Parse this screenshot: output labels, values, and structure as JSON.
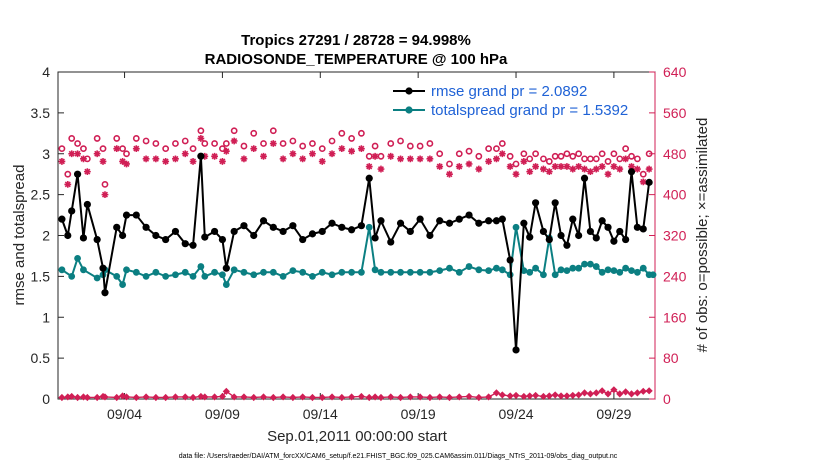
{
  "chart_data": {
    "type": "line",
    "title": "Tropics 27291 / 28728 = 94.998%",
    "subtitle": "RADIOSONDE_TEMPERATURE @ 100 hPa",
    "xlabel": "Sep.01,2011 00:00:00 start",
    "ylabel": "rmse and totalspread",
    "ylabel_right": "# of obs: o=possible; ×=assimilated",
    "footnote": "data file: /Users/raeder/DAI/ATM_forcXX/CAM6_setup/f.e21.FHIST_BGC.f09_025.CAM6assim.011/Diags_NTrS_2011-09/obs_diag_output.nc",
    "xlim": [
      0.6,
      31.1
    ],
    "ylim": [
      0,
      4
    ],
    "ylim_right": [
      0,
      640
    ],
    "xticks": [
      4,
      9,
      14,
      19,
      24,
      29
    ],
    "xtick_labels": [
      "09/04",
      "09/09",
      "09/14",
      "09/19",
      "09/24",
      "09/29"
    ],
    "yticks": [
      0,
      0.5,
      1,
      1.5,
      2,
      2.5,
      3,
      3.5,
      4
    ],
    "ytick_labels": [
      "0",
      "0.5",
      "1",
      "1.5",
      "2",
      "2.5",
      "3",
      "3.5",
      "4"
    ],
    "yticks_right": [
      0,
      80,
      160,
      240,
      320,
      400,
      480,
      560,
      640
    ],
    "ytick_labels_right": [
      "0",
      "80",
      "160",
      "240",
      "320",
      "400",
      "480",
      "560",
      "640"
    ],
    "colors": {
      "rmse": "#000000",
      "spread": "#0b7f82",
      "obs": "#d01f55",
      "legend_text": "#1f62d6",
      "axis": "#262626"
    },
    "legend": [
      "rmse grand pr = 2.0892",
      "totalspread grand pr = 1.5392"
    ],
    "series": [
      {
        "name": "rmse",
        "x": [
          0.8,
          1.1,
          1.3,
          1.6,
          1.9,
          2.1,
          2.6,
          2.9,
          3.0,
          3.6,
          3.9,
          4.1,
          4.6,
          5.1,
          5.6,
          6.1,
          6.6,
          7.1,
          7.5,
          7.9,
          8.1,
          8.6,
          9.0,
          9.2,
          9.6,
          10.1,
          10.6,
          11.1,
          11.6,
          12.1,
          12.6,
          13.1,
          13.6,
          14.1,
          14.6,
          15.1,
          15.6,
          16.1,
          16.5,
          16.8,
          17.1,
          17.6,
          18.1,
          18.6,
          19.1,
          19.6,
          20.1,
          20.6,
          21.1,
          21.6,
          22.1,
          22.6,
          23.0,
          23.3,
          23.7,
          24.0,
          24.4,
          24.7,
          25.0,
          25.4,
          25.7,
          26.0,
          26.3,
          26.6,
          26.9,
          27.2,
          27.5,
          27.8,
          28.1,
          28.4,
          28.7,
          29.0,
          29.3,
          29.6,
          29.9,
          30.2,
          30.5,
          30.8
        ],
        "values": [
          2.2,
          2.0,
          2.3,
          2.75,
          1.97,
          2.38,
          1.95,
          1.6,
          1.3,
          2.1,
          2.0,
          2.25,
          2.25,
          2.1,
          2.0,
          1.95,
          2.05,
          1.9,
          1.88,
          2.97,
          1.98,
          2.05,
          1.95,
          1.6,
          2.05,
          2.12,
          2.0,
          2.18,
          2.1,
          2.05,
          2.12,
          1.95,
          2.02,
          2.05,
          2.15,
          2.1,
          2.07,
          2.12,
          2.7,
          1.97,
          2.18,
          1.92,
          2.15,
          2.05,
          2.2,
          2.0,
          2.18,
          2.15,
          2.2,
          2.25,
          2.15,
          2.18,
          2.18,
          2.2,
          1.7,
          0.6,
          2.15,
          1.98,
          2.4,
          2.05,
          1.95,
          2.4,
          2.0,
          1.88,
          2.2,
          2.0,
          2.7,
          2.05,
          1.97,
          2.18,
          2.1,
          1.93,
          2.05,
          1.95,
          2.78,
          2.1,
          2.08,
          2.65
        ]
      },
      {
        "name": "totalspread",
        "x": [
          0.8,
          1.3,
          1.6,
          1.9,
          2.6,
          2.9,
          3.0,
          3.6,
          3.9,
          4.1,
          4.6,
          5.1,
          5.6,
          6.1,
          6.6,
          7.1,
          7.5,
          7.9,
          8.1,
          8.6,
          9.0,
          9.2,
          9.6,
          10.1,
          10.6,
          11.1,
          11.6,
          12.1,
          12.6,
          13.1,
          13.6,
          14.1,
          14.6,
          15.1,
          15.6,
          16.1,
          16.5,
          16.8,
          17.1,
          17.6,
          18.1,
          18.6,
          19.1,
          19.6,
          20.1,
          20.6,
          21.1,
          21.6,
          22.1,
          22.6,
          23.0,
          23.3,
          23.7,
          24.0,
          24.4,
          24.7,
          25.0,
          25.4,
          25.7,
          26.0,
          26.3,
          26.6,
          26.9,
          27.2,
          27.5,
          27.8,
          28.1,
          28.4,
          28.7,
          29.0,
          29.3,
          29.6,
          29.9,
          30.2,
          30.5,
          30.8,
          31.0
        ],
        "values": [
          1.58,
          1.5,
          1.72,
          1.58,
          1.48,
          1.52,
          1.58,
          1.5,
          1.4,
          1.58,
          1.55,
          1.5,
          1.55,
          1.5,
          1.52,
          1.55,
          1.5,
          1.62,
          1.5,
          1.55,
          1.52,
          1.4,
          1.58,
          1.55,
          1.52,
          1.55,
          1.55,
          1.5,
          1.57,
          1.55,
          1.5,
          1.55,
          1.52,
          1.55,
          1.55,
          1.55,
          2.1,
          1.58,
          1.55,
          1.55,
          1.55,
          1.55,
          1.55,
          1.55,
          1.57,
          1.6,
          1.55,
          1.62,
          1.58,
          1.57,
          1.6,
          1.58,
          1.52,
          2.1,
          1.57,
          1.55,
          1.6,
          1.52,
          1.97,
          1.52,
          1.58,
          1.57,
          1.6,
          1.6,
          1.65,
          1.65,
          1.62,
          1.55,
          1.58,
          1.57,
          1.55,
          1.6,
          1.57,
          1.55,
          1.6,
          1.52,
          1.52
        ]
      },
      {
        "name": "# obs possible",
        "axis": "right",
        "x": [
          0.8,
          1.1,
          1.3,
          1.6,
          1.9,
          2.1,
          2.6,
          2.9,
          3.0,
          3.6,
          3.9,
          4.1,
          4.6,
          5.1,
          5.6,
          6.1,
          6.6,
          7.1,
          7.5,
          7.9,
          8.1,
          8.6,
          9.0,
          9.2,
          9.6,
          10.1,
          10.6,
          11.1,
          11.6,
          12.1,
          12.6,
          13.1,
          13.6,
          14.1,
          14.6,
          15.1,
          15.6,
          16.1,
          16.5,
          16.8,
          17.1,
          17.6,
          18.1,
          18.6,
          19.1,
          19.6,
          20.1,
          20.6,
          21.1,
          21.6,
          22.1,
          22.6,
          23.0,
          23.3,
          23.7,
          24.0,
          24.4,
          24.7,
          25.0,
          25.4,
          25.7,
          26.0,
          26.3,
          26.6,
          26.9,
          27.2,
          27.5,
          27.8,
          28.1,
          28.4,
          28.7,
          29.0,
          29.3,
          29.6,
          29.9,
          30.2,
          30.5,
          30.8
        ],
        "values": [
          490,
          440,
          510,
          500,
          490,
          470,
          510,
          490,
          420,
          510,
          490,
          480,
          510,
          505,
          500,
          490,
          500,
          505,
          490,
          525,
          500,
          500,
          490,
          500,
          525,
          495,
          520,
          500,
          525,
          500,
          505,
          495,
          500,
          490,
          505,
          520,
          510,
          520,
          475,
          495,
          475,
          500,
          505,
          495,
          495,
          500,
          480,
          460,
          480,
          485,
          475,
          490,
          490,
          500,
          475,
          460,
          480,
          470,
          480,
          470,
          465,
          475,
          475,
          480,
          475,
          480,
          470,
          470,
          470,
          480,
          465,
          480,
          470,
          490,
          475,
          470,
          440,
          480
        ]
      },
      {
        "name": "# obs assimilated",
        "axis": "right",
        "x": [
          0.8,
          1.1,
          1.3,
          1.6,
          1.9,
          2.1,
          2.6,
          2.9,
          3.0,
          3.6,
          3.9,
          4.1,
          4.6,
          5.1,
          5.6,
          6.1,
          6.6,
          7.1,
          7.5,
          7.9,
          8.1,
          8.6,
          9.0,
          9.2,
          9.6,
          10.1,
          10.6,
          11.1,
          11.6,
          12.1,
          12.6,
          13.1,
          13.6,
          14.1,
          14.6,
          15.1,
          15.6,
          16.1,
          16.5,
          16.8,
          17.1,
          17.6,
          18.1,
          18.6,
          19.1,
          19.6,
          20.1,
          20.6,
          21.1,
          21.6,
          22.1,
          22.6,
          23.0,
          23.3,
          23.7,
          24.0,
          24.4,
          24.7,
          25.0,
          25.4,
          25.7,
          26.0,
          26.3,
          26.6,
          26.9,
          27.2,
          27.5,
          27.8,
          28.1,
          28.4,
          28.7,
          29.0,
          29.3,
          29.6,
          29.9,
          30.2,
          30.5,
          30.8
        ],
        "values": [
          465,
          420,
          480,
          480,
          470,
          445,
          480,
          465,
          400,
          490,
          465,
          460,
          490,
          470,
          470,
          465,
          470,
          480,
          465,
          510,
          475,
          475,
          465,
          485,
          505,
          470,
          490,
          475,
          500,
          470,
          480,
          470,
          480,
          465,
          480,
          490,
          485,
          490,
          455,
          475,
          450,
          475,
          470,
          470,
          470,
          470,
          455,
          440,
          455,
          460,
          450,
          465,
          470,
          480,
          455,
          440,
          465,
          445,
          455,
          450,
          445,
          455,
          455,
          455,
          450,
          455,
          450,
          445,
          450,
          455,
          440,
          455,
          450,
          470,
          455,
          450,
          425,
          450
        ]
      },
      {
        "name": "# obs rejected",
        "axis": "right",
        "x": [
          0.8,
          1.1,
          1.3,
          1.6,
          1.9,
          2.1,
          2.6,
          2.9,
          3.0,
          3.6,
          3.9,
          4.1,
          4.6,
          5.1,
          5.6,
          6.1,
          6.6,
          7.1,
          7.5,
          7.9,
          8.1,
          8.6,
          9.0,
          9.2,
          9.6,
          10.1,
          10.6,
          11.1,
          11.6,
          12.1,
          12.6,
          13.1,
          13.6,
          14.1,
          14.6,
          15.1,
          15.6,
          16.1,
          16.5,
          16.8,
          17.1,
          17.6,
          18.1,
          18.6,
          19.1,
          19.6,
          20.1,
          20.6,
          21.1,
          21.6,
          22.1,
          22.6,
          23.0,
          23.3,
          23.7,
          24.0,
          24.4,
          24.7,
          25.0,
          25.4,
          25.7,
          26.0,
          26.3,
          26.6,
          26.9,
          27.2,
          27.5,
          27.8,
          28.1,
          28.4,
          28.7,
          29.0,
          29.3,
          29.6,
          29.9,
          30.2,
          30.5,
          30.8
        ],
        "values": [
          3,
          4,
          5,
          3,
          4,
          3,
          3,
          5,
          4,
          3,
          6,
          4,
          3,
          4,
          3,
          3,
          4,
          4,
          3,
          5,
          4,
          4,
          5,
          15,
          4,
          4,
          3,
          4,
          3,
          4,
          3,
          4,
          3,
          3,
          4,
          3,
          4,
          5,
          3,
          4,
          3,
          4,
          3,
          4,
          4,
          3,
          4,
          3,
          4,
          5,
          3,
          4,
          12,
          8,
          6,
          7,
          5,
          6,
          7,
          5,
          6,
          8,
          6,
          6,
          7,
          8,
          12,
          10,
          12,
          16,
          10,
          18,
          10,
          14,
          10,
          12,
          15,
          16
        ]
      }
    ]
  }
}
